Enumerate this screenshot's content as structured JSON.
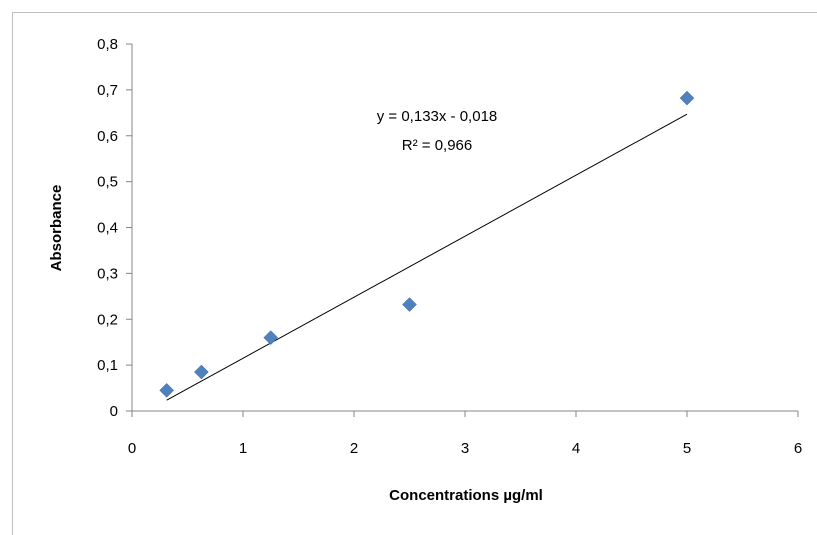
{
  "chart_data": {
    "type": "scatter",
    "title": "",
    "xlabel": "Concentrations µg/ml",
    "ylabel": "Absorbance",
    "xlim": [
      0,
      6
    ],
    "ylim": [
      0,
      0.8
    ],
    "x_ticks": [
      0,
      1,
      2,
      3,
      4,
      5,
      6
    ],
    "x_tick_labels": [
      "0",
      "1",
      "2",
      "3",
      "4",
      "5",
      "6"
    ],
    "y_ticks": [
      0,
      0.1,
      0.2,
      0.3,
      0.4,
      0.5,
      0.6,
      0.7,
      0.8
    ],
    "y_tick_labels": [
      "0",
      "0,1",
      "0,2",
      "0,3",
      "0,4",
      "0,5",
      "0,6",
      "0,7",
      "0,8"
    ],
    "grid": false,
    "legend": "none",
    "series": [
      {
        "marker": "diamond",
        "color": "#4f81bd",
        "points": [
          {
            "x": 0.3125,
            "y": 0.045
          },
          {
            "x": 0.625,
            "y": 0.085
          },
          {
            "x": 1.25,
            "y": 0.16
          },
          {
            "x": 2.5,
            "y": 0.232
          },
          {
            "x": 5,
            "y": 0.682
          }
        ]
      }
    ],
    "trendline": {
      "type": "linear",
      "slope": 0.133,
      "intercept": -0.018,
      "x_range": [
        0.3125,
        5
      ],
      "color": "#000000",
      "equation_label": "y = 0,133x - 0,018",
      "r2_label": "R² = 0,966"
    }
  }
}
